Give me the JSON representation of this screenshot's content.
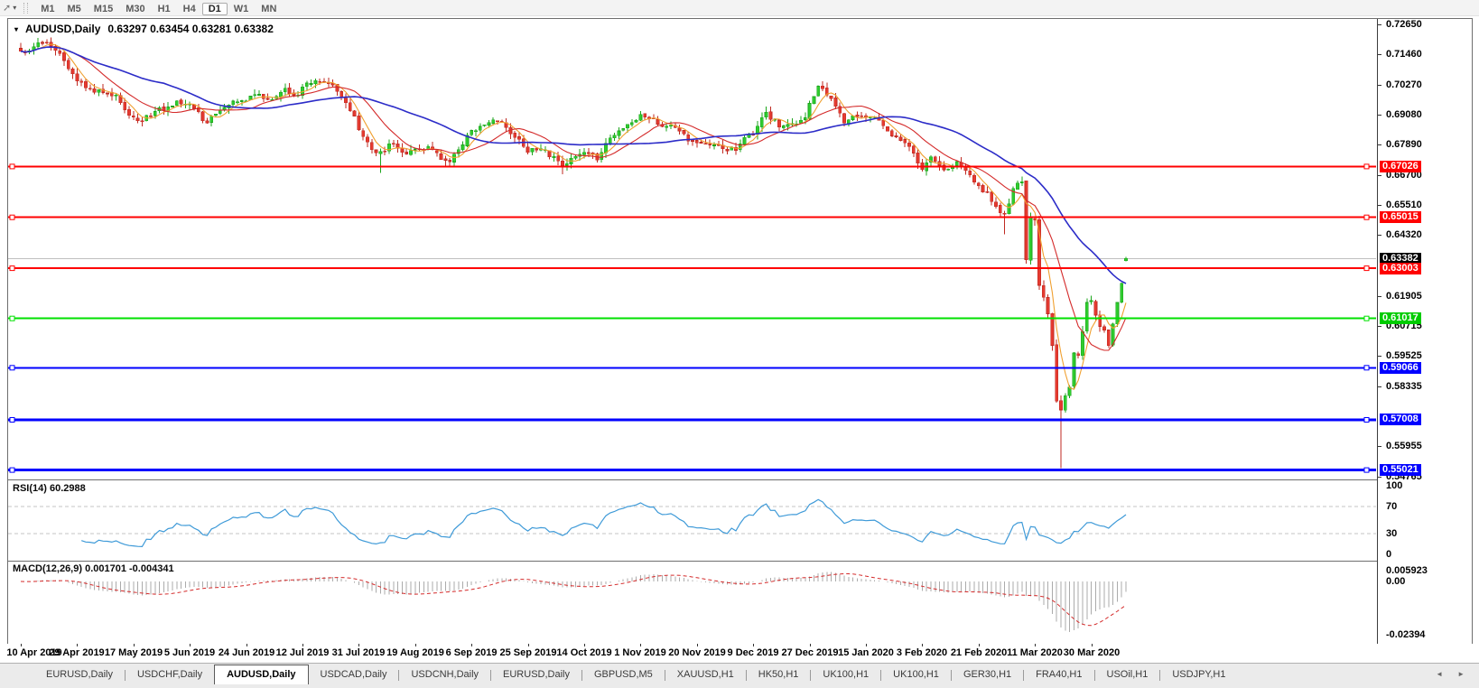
{
  "toolbar": {
    "timeframes": [
      "M1",
      "M5",
      "M15",
      "M30",
      "H1",
      "H4",
      "D1",
      "W1",
      "MN"
    ],
    "active_timeframe": "D1"
  },
  "icons": {
    "cursor_tool": "➚",
    "caret_down": "▾",
    "scroll_left": "◄",
    "scroll_right": "►"
  },
  "header": {
    "symbol": "AUDUSD,Daily",
    "ohlc": "0.63297 0.63454 0.63281 0.63382"
  },
  "panels": {
    "rsi_label": "RSI(14) 60.2988",
    "rsi_axis": [
      "100",
      "70",
      "30",
      "0"
    ],
    "macd_label": "MACD(12,26,9) 0.001701 -0.004341",
    "macd_axis": [
      "0.005923",
      "0.00",
      "-0.02394"
    ]
  },
  "axes": {
    "price_ticks": [
      "0.72650",
      "0.71460",
      "0.70270",
      "0.69080",
      "0.67890",
      "0.66700",
      "0.65510",
      "0.64320",
      "0.61905",
      "0.60715",
      "0.59525",
      "0.58335",
      "0.55955",
      "0.54765"
    ],
    "price_badges": [
      {
        "label": "0.67026",
        "color": "#FF0000"
      },
      {
        "label": "0.65015",
        "color": "#FF0000"
      },
      {
        "label": "0.63382",
        "color": "#000000"
      },
      {
        "label": "0.63003",
        "color": "#FF0000"
      },
      {
        "label": "0.61017",
        "color": "#00CC00"
      },
      {
        "label": "0.59066",
        "color": "#0000FF"
      },
      {
        "label": "0.57008",
        "color": "#0000FF"
      },
      {
        "label": "0.55021",
        "color": "#0000FF"
      }
    ]
  },
  "tabs": {
    "items": [
      "EURUSD,Daily",
      "USDCHF,Daily",
      "AUDUSD,Daily",
      "USDCAD,Daily",
      "USDCNH,Daily",
      "EURUSD,Daily",
      "GBPUSD,M5",
      "XAUUSD,H1",
      "HK50,H1",
      "UK100,H1",
      "UK100,H1",
      "GER30,H1",
      "FRA40,H1",
      "USOil,H1",
      "USDJPY,H1"
    ],
    "active_index": 2
  },
  "chart_data": {
    "type": "candlestick",
    "title": "AUDUSD,Daily",
    "symbol": "AUDUSD",
    "timeframe": "Daily",
    "bars_total": 256,
    "y_axis": {
      "top": 0.7286,
      "bottom": 0.5465
    },
    "x_ticks": [
      {
        "label": "10 Apr 2019",
        "bar": 0
      },
      {
        "label": "29 Apr 2019",
        "bar": 13
      },
      {
        "label": "17 May 2019",
        "bar": 26
      },
      {
        "label": "5 Jun 2019",
        "bar": 39
      },
      {
        "label": "24 Jun 2019",
        "bar": 52
      },
      {
        "label": "12 Jul 2019",
        "bar": 65
      },
      {
        "label": "31 Jul 2019",
        "bar": 78
      },
      {
        "label": "19 Aug 2019",
        "bar": 91
      },
      {
        "label": "6 Sep 2019",
        "bar": 104
      },
      {
        "label": "25 Sep 2019",
        "bar": 117
      },
      {
        "label": "14 Oct 2019",
        "bar": 130
      },
      {
        "label": "1 Nov 2019",
        "bar": 143
      },
      {
        "label": "20 Nov 2019",
        "bar": 156
      },
      {
        "label": "9 Dec 2019",
        "bar": 169
      },
      {
        "label": "27 Dec 2019",
        "bar": 182
      },
      {
        "label": "15 Jan 2020",
        "bar": 195
      },
      {
        "label": "3 Feb 2020",
        "bar": 208
      },
      {
        "label": "21 Feb 2020",
        "bar": 221
      },
      {
        "label": "11 Mar 2020",
        "bar": 234
      },
      {
        "label": "30 Mar 2020",
        "bar": 247
      }
    ],
    "close_anchors": [
      [
        0,
        0.7158
      ],
      [
        3,
        0.7176
      ],
      [
        6,
        0.7192
      ],
      [
        9,
        0.715
      ],
      [
        13,
        0.704
      ],
      [
        16,
        0.701
      ],
      [
        19,
        0.6995
      ],
      [
        22,
        0.6985
      ],
      [
        25,
        0.6905
      ],
      [
        28,
        0.688
      ],
      [
        31,
        0.692
      ],
      [
        34,
        0.6938
      ],
      [
        36,
        0.6962
      ],
      [
        39,
        0.695
      ],
      [
        43,
        0.6875
      ],
      [
        46,
        0.6925
      ],
      [
        50,
        0.6958
      ],
      [
        52,
        0.6962
      ],
      [
        55,
        0.6988
      ],
      [
        58,
        0.6968
      ],
      [
        61,
        0.7012
      ],
      [
        64,
        0.6985
      ],
      [
        65,
        0.7018
      ],
      [
        68,
        0.7042
      ],
      [
        71,
        0.7032
      ],
      [
        74,
        0.6975
      ],
      [
        77,
        0.6902
      ],
      [
        78,
        0.6848
      ],
      [
        80,
        0.68
      ],
      [
        82,
        0.6757
      ],
      [
        83,
        0.6762
      ],
      [
        86,
        0.6792
      ],
      [
        89,
        0.6752
      ],
      [
        91,
        0.6772
      ],
      [
        94,
        0.6782
      ],
      [
        97,
        0.673
      ],
      [
        99,
        0.6722
      ],
      [
        102,
        0.6788
      ],
      [
        104,
        0.6845
      ],
      [
        107,
        0.6868
      ],
      [
        110,
        0.6882
      ],
      [
        113,
        0.6832
      ],
      [
        116,
        0.6782
      ],
      [
        117,
        0.6758
      ],
      [
        120,
        0.6772
      ],
      [
        123,
        0.6742
      ],
      [
        125,
        0.6706
      ],
      [
        128,
        0.6742
      ],
      [
        130,
        0.6758
      ],
      [
        133,
        0.6728
      ],
      [
        136,
        0.6815
      ],
      [
        139,
        0.6852
      ],
      [
        142,
        0.6885
      ],
      [
        143,
        0.6908
      ],
      [
        146,
        0.6892
      ],
      [
        149,
        0.6862
      ],
      [
        152,
        0.6842
      ],
      [
        155,
        0.6802
      ],
      [
        156,
        0.6796
      ],
      [
        159,
        0.6788
      ],
      [
        162,
        0.6772
      ],
      [
        165,
        0.6766
      ],
      [
        168,
        0.6832
      ],
      [
        169,
        0.683
      ],
      [
        172,
        0.6917
      ],
      [
        175,
        0.6858
      ],
      [
        178,
        0.6872
      ],
      [
        181,
        0.6895
      ],
      [
        182,
        0.6952
      ],
      [
        184,
        0.702
      ],
      [
        186,
        0.6985
      ],
      [
        188,
        0.694
      ],
      [
        190,
        0.6875
      ],
      [
        193,
        0.69
      ],
      [
        195,
        0.6896
      ],
      [
        198,
        0.6885
      ],
      [
        200,
        0.6842
      ],
      [
        203,
        0.6806
      ],
      [
        206,
        0.6756
      ],
      [
        208,
        0.669
      ],
      [
        210,
        0.674
      ],
      [
        213,
        0.669
      ],
      [
        216,
        0.6722
      ],
      [
        219,
        0.667
      ],
      [
        221,
        0.6626
      ],
      [
        223,
        0.66
      ],
      [
        225,
        0.6545
      ],
      [
        227,
        0.6515
      ],
      [
        229,
        0.6615
      ],
      [
        231,
        0.6642
      ],
      [
        232,
        0.6333
      ],
      [
        233,
        0.65
      ],
      [
        234,
        0.649
      ],
      [
        235,
        0.6233
      ],
      [
        236,
        0.6185
      ],
      [
        237,
        0.612
      ],
      [
        238,
        0.5995
      ],
      [
        239,
        0.5775
      ],
      [
        240,
        0.574
      ],
      [
        241,
        0.5796
      ],
      [
        242,
        0.583
      ],
      [
        243,
        0.5965
      ],
      [
        244,
        0.5955
      ],
      [
        245,
        0.605
      ],
      [
        246,
        0.6165
      ],
      [
        247,
        0.6172
      ],
      [
        248,
        0.6115
      ],
      [
        249,
        0.607
      ],
      [
        250,
        0.6055
      ],
      [
        251,
        0.5995
      ],
      [
        252,
        0.608
      ],
      [
        253,
        0.6165
      ],
      [
        254,
        0.624
      ],
      [
        255,
        0.63382
      ]
    ],
    "low_overrides": {
      "83": 0.6677,
      "125": 0.6671,
      "227": 0.6435,
      "240": 0.551
    },
    "high_overrides": {
      "6": 0.7206,
      "172": 0.6939,
      "233": 0.652
    },
    "last_bar": {
      "open": 0.63297,
      "high": 0.63454,
      "low": 0.63281,
      "close": 0.63382
    },
    "current_price_line": {
      "price": 0.63382,
      "color": "#BEBEBE"
    },
    "hlines": [
      {
        "price": 0.67026,
        "color": "#FF0000",
        "width": 2
      },
      {
        "price": 0.65015,
        "color": "#FF0000",
        "width": 2
      },
      {
        "price": 0.63003,
        "color": "#FF0000",
        "width": 2
      },
      {
        "price": 0.61017,
        "color": "#00E000",
        "width": 2
      },
      {
        "price": 0.59066,
        "color": "#0000FF",
        "width": 2
      },
      {
        "price": 0.57008,
        "color": "#0000FF",
        "width": 3
      },
      {
        "price": 0.55021,
        "color": "#0000FF",
        "width": 3
      }
    ],
    "moving_averages": [
      {
        "name": "fast",
        "period": 5,
        "color": "#F0A030"
      },
      {
        "name": "medium",
        "period": 13,
        "color": "#D42A2A"
      },
      {
        "name": "slow",
        "period": 34,
        "color": "#2C2CC8"
      }
    ],
    "candle_colors": {
      "up_fill": "#2FCC2F",
      "up_stroke": "#1CA51C",
      "down_fill": "#E53A30",
      "down_stroke": "#BF2A22"
    },
    "rsi": {
      "period": 14,
      "current": 60.2988,
      "levels": [
        70,
        30
      ],
      "color": "#3E9AD8",
      "range": [
        0,
        100
      ]
    },
    "macd": {
      "fast": 12,
      "slow": 26,
      "signal": 9,
      "main_value": 0.001701,
      "signal_value": -0.004341,
      "axis_max": 0.005923,
      "axis_min": -0.02394,
      "hist_color": "#ABABAB",
      "signal_color": "#D42A2A"
    }
  }
}
